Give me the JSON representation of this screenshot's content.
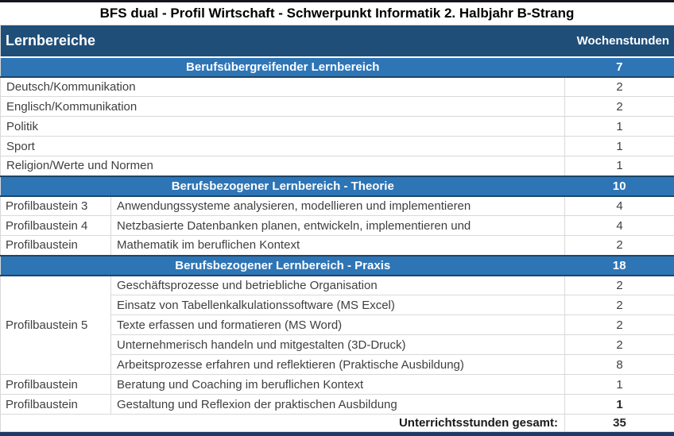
{
  "title": "BFS dual - Profil Wirtschaft - Schwerpunkt Informatik 2. Halbjahr B-Strang",
  "columns": {
    "lernbereiche": "Lernbereiche",
    "wochenstunden": "Wochenstunden"
  },
  "sections": [
    {
      "title": "Berufsübergreifender Lernbereich",
      "hours": "7"
    },
    {
      "title": "Berufsbezogener Lernbereich - Theorie",
      "hours": "10"
    },
    {
      "title": "Berufsbezogener Lernbereich - Praxis",
      "hours": "18"
    }
  ],
  "rows": [
    {
      "module": "",
      "subject": "Deutsch/Kommunikation",
      "hours": "2"
    },
    {
      "module": "",
      "subject": "Englisch/Kommunikation",
      "hours": "2"
    },
    {
      "module": "",
      "subject": "Politik",
      "hours": "1"
    },
    {
      "module": "",
      "subject": "Sport",
      "hours": "1"
    },
    {
      "module": "",
      "subject": "Religion/Werte und Normen",
      "hours": "1"
    },
    {
      "module": "Profilbaustein 3",
      "subject": "Anwendungssysteme analysieren, modellieren und implementieren",
      "hours": "4"
    },
    {
      "module": "Profilbaustein 4",
      "subject": "Netzbasierte Datenbanken planen, entwickeln, implementieren und",
      "hours": "4"
    },
    {
      "module": "Profilbaustein",
      "subject": "Mathematik im beruflichen Kontext",
      "hours": "2"
    },
    {
      "module": "Profilbaustein 5",
      "subject": "Geschäftsprozesse und betriebliche Organisation",
      "hours": "2"
    },
    {
      "module": "",
      "subject": "Einsatz von Tabellenkalkulationssoftware (MS Excel)",
      "hours": "2"
    },
    {
      "module": "",
      "subject": "Texte erfassen und formatieren (MS Word)",
      "hours": "2"
    },
    {
      "module": "",
      "subject": "Unternehmerisch handeln und mitgestalten (3D-Druck)",
      "hours": "2"
    },
    {
      "module": "",
      "subject": "Arbeitsprozesse erfahren und reflektieren (Praktische Ausbildung)",
      "hours": "8"
    },
    {
      "module": "Profilbaustein",
      "subject": "Beratung und Coaching im beruflichen Kontext",
      "hours": "1"
    },
    {
      "module": "Profilbaustein",
      "subject": "Gestaltung und Reflexion der praktischen Ausbildung",
      "hours": "1"
    }
  ],
  "footer": {
    "label": "Unterrichtsstunden gesamt:",
    "value": "35"
  },
  "colors": {
    "header_bg": "#1F4E79",
    "section_bg": "#2E75B6",
    "section_border": "#1C4568",
    "grid_line": "#D9D9D9",
    "body_text": "#3F3F3F",
    "bottom_bar": "#1F3864"
  }
}
